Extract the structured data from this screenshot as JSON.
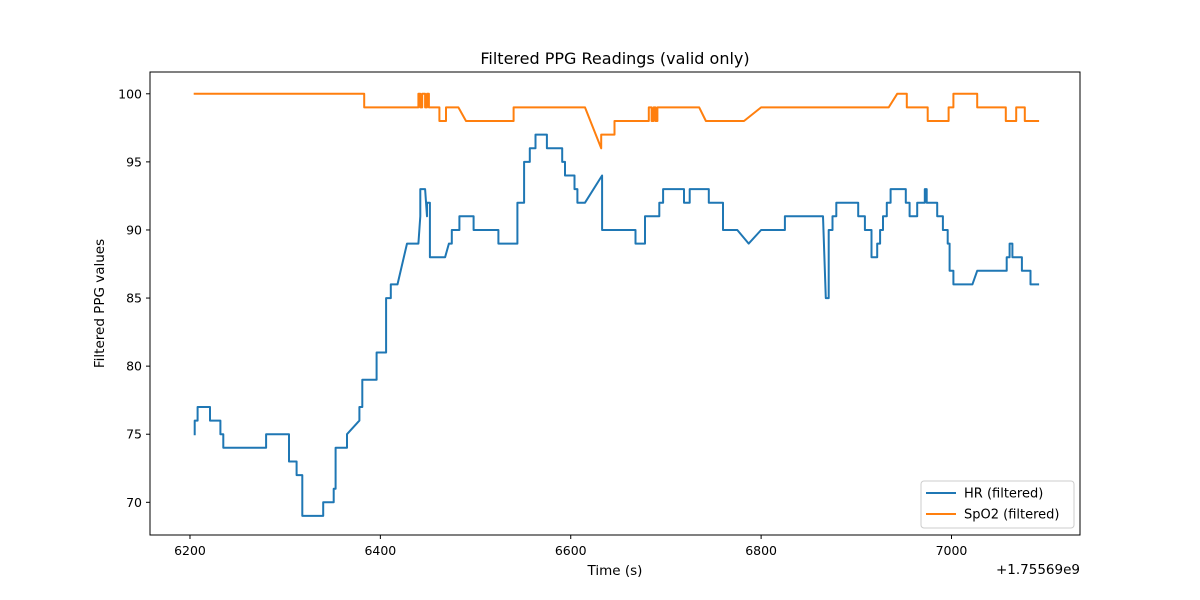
{
  "chart_data": {
    "type": "line",
    "title": "Filtered PPG Readings (valid only)",
    "xlabel": "Time (s)",
    "ylabel": "Filtered PPG values",
    "x_offset_label": "+1.75569e9",
    "xlim": [
      6158,
      7135
    ],
    "ylim": [
      67.6,
      101.6
    ],
    "xticks": [
      6200,
      6400,
      6600,
      6800,
      7000
    ],
    "yticks": [
      70,
      75,
      80,
      85,
      90,
      95,
      100
    ],
    "grid": false,
    "legend_position": "lower right",
    "series": [
      {
        "name": "HR (filtered)",
        "color": "#1f77b4",
        "points": [
          [
            6205,
            75
          ],
          [
            6205,
            76
          ],
          [
            6208,
            76
          ],
          [
            6208,
            77
          ],
          [
            6221,
            77
          ],
          [
            6221,
            76
          ],
          [
            6232,
            76
          ],
          [
            6232,
            75
          ],
          [
            6235,
            75
          ],
          [
            6235,
            74
          ],
          [
            6280,
            74
          ],
          [
            6280,
            75
          ],
          [
            6304,
            75
          ],
          [
            6304,
            73
          ],
          [
            6312,
            73
          ],
          [
            6312,
            72
          ],
          [
            6318,
            72
          ],
          [
            6318,
            69
          ],
          [
            6340,
            69
          ],
          [
            6340,
            70
          ],
          [
            6351,
            70
          ],
          [
            6351,
            71
          ],
          [
            6353,
            71
          ],
          [
            6353,
            74
          ],
          [
            6365,
            74
          ],
          [
            6365,
            75
          ],
          [
            6378,
            76
          ],
          [
            6378,
            77
          ],
          [
            6381,
            77
          ],
          [
            6381,
            79
          ],
          [
            6396,
            79
          ],
          [
            6396,
            81
          ],
          [
            6406,
            81
          ],
          [
            6406,
            85
          ],
          [
            6411,
            85
          ],
          [
            6411,
            86
          ],
          [
            6418,
            86
          ],
          [
            6428,
            89
          ],
          [
            6440,
            89
          ],
          [
            6442,
            91
          ],
          [
            6442,
            93
          ],
          [
            6447,
            93
          ],
          [
            6449,
            91
          ],
          [
            6449,
            92
          ],
          [
            6452,
            92
          ],
          [
            6452,
            88
          ],
          [
            6468,
            88
          ],
          [
            6472,
            89
          ],
          [
            6475,
            89
          ],
          [
            6475,
            90
          ],
          [
            6483,
            90
          ],
          [
            6483,
            91
          ],
          [
            6498,
            91
          ],
          [
            6498,
            90
          ],
          [
            6524,
            90
          ],
          [
            6524,
            89
          ],
          [
            6544,
            89
          ],
          [
            6544,
            92
          ],
          [
            6551,
            92
          ],
          [
            6551,
            95
          ],
          [
            6557,
            95
          ],
          [
            6557,
            96
          ],
          [
            6563,
            96
          ],
          [
            6563,
            97
          ],
          [
            6575,
            97
          ],
          [
            6575,
            96
          ],
          [
            6591,
            96
          ],
          [
            6591,
            95
          ],
          [
            6594,
            95
          ],
          [
            6594,
            94
          ],
          [
            6604,
            94
          ],
          [
            6604,
            93
          ],
          [
            6607,
            93
          ],
          [
            6607,
            92
          ],
          [
            6615,
            92
          ],
          [
            6633,
            94
          ],
          [
            6633,
            90
          ],
          [
            6668,
            90
          ],
          [
            6668,
            89
          ],
          [
            6678,
            89
          ],
          [
            6678,
            91
          ],
          [
            6693,
            91
          ],
          [
            6693,
            92
          ],
          [
            6697,
            92
          ],
          [
            6697,
            93
          ],
          [
            6719,
            93
          ],
          [
            6719,
            92
          ],
          [
            6725,
            92
          ],
          [
            6725,
            93
          ],
          [
            6745,
            93
          ],
          [
            6745,
            92
          ],
          [
            6760,
            92
          ],
          [
            6760,
            90
          ],
          [
            6775,
            90
          ],
          [
            6787,
            89
          ],
          [
            6800,
            90
          ],
          [
            6825,
            90
          ],
          [
            6825,
            91
          ],
          [
            6865,
            91
          ],
          [
            6868,
            85
          ],
          [
            6871,
            85
          ],
          [
            6871,
            90
          ],
          [
            6875,
            90
          ],
          [
            6875,
            91
          ],
          [
            6879,
            91
          ],
          [
            6879,
            92
          ],
          [
            6902,
            92
          ],
          [
            6902,
            91
          ],
          [
            6909,
            91
          ],
          [
            6909,
            90
          ],
          [
            6916,
            90
          ],
          [
            6916,
            88
          ],
          [
            6922,
            88
          ],
          [
            6922,
            89
          ],
          [
            6925,
            89
          ],
          [
            6925,
            90
          ],
          [
            6928,
            90
          ],
          [
            6928,
            91
          ],
          [
            6932,
            91
          ],
          [
            6932,
            92
          ],
          [
            6936,
            92
          ],
          [
            6936,
            93
          ],
          [
            6952,
            93
          ],
          [
            6952,
            92
          ],
          [
            6956,
            92
          ],
          [
            6956,
            91
          ],
          [
            6964,
            91
          ],
          [
            6964,
            92
          ],
          [
            6972,
            92
          ],
          [
            6972,
            93
          ],
          [
            6974,
            93
          ],
          [
            6974,
            92
          ],
          [
            6985,
            92
          ],
          [
            6985,
            91
          ],
          [
            6991,
            91
          ],
          [
            6991,
            90
          ],
          [
            6996,
            90
          ],
          [
            6996,
            89
          ],
          [
            6998,
            89
          ],
          [
            6998,
            87
          ],
          [
            7002,
            87
          ],
          [
            7002,
            86
          ],
          [
            7022,
            86
          ],
          [
            7027,
            87
          ],
          [
            7058,
            87
          ],
          [
            7058,
            88
          ],
          [
            7061,
            88
          ],
          [
            7061,
            89
          ],
          [
            7064,
            89
          ],
          [
            7064,
            88
          ],
          [
            7074,
            88
          ],
          [
            7074,
            87
          ],
          [
            7083,
            87
          ],
          [
            7083,
            86
          ],
          [
            7091,
            86
          ]
        ]
      },
      {
        "name": "SpO2 (filtered)",
        "color": "#ff7f0e",
        "points": [
          [
            6205,
            100
          ],
          [
            6383,
            100
          ],
          [
            6383,
            99
          ],
          [
            6440,
            99
          ],
          [
            6440,
            100
          ],
          [
            6442,
            100
          ],
          [
            6442,
            99
          ],
          [
            6444,
            99
          ],
          [
            6444,
            100
          ],
          [
            6447,
            100
          ],
          [
            6447,
            99
          ],
          [
            6449,
            99
          ],
          [
            6449,
            100
          ],
          [
            6451,
            100
          ],
          [
            6451,
            99
          ],
          [
            6462,
            99
          ],
          [
            6462,
            98
          ],
          [
            6469,
            98
          ],
          [
            6469,
            99
          ],
          [
            6482,
            99
          ],
          [
            6490,
            98
          ],
          [
            6540,
            98
          ],
          [
            6540,
            99
          ],
          [
            6615,
            99
          ],
          [
            6632,
            96
          ],
          [
            6632,
            97
          ],
          [
            6646,
            97
          ],
          [
            6646,
            98
          ],
          [
            6682,
            98
          ],
          [
            6682,
            99
          ],
          [
            6685,
            99
          ],
          [
            6685,
            98
          ],
          [
            6687,
            98
          ],
          [
            6687,
            99
          ],
          [
            6689,
            99
          ],
          [
            6689,
            98
          ],
          [
            6691,
            98
          ],
          [
            6691,
            99
          ],
          [
            6735,
            99
          ],
          [
            6742,
            98
          ],
          [
            6782,
            98
          ],
          [
            6800,
            99
          ],
          [
            6934,
            99
          ],
          [
            6943,
            100
          ],
          [
            6953,
            100
          ],
          [
            6953,
            99
          ],
          [
            6975,
            99
          ],
          [
            6975,
            98
          ],
          [
            6997,
            98
          ],
          [
            6997,
            99
          ],
          [
            7002,
            99
          ],
          [
            7002,
            100
          ],
          [
            7027,
            100
          ],
          [
            7027,
            99
          ],
          [
            7057,
            99
          ],
          [
            7057,
            98
          ],
          [
            7068,
            98
          ],
          [
            7068,
            99
          ],
          [
            7077,
            99
          ],
          [
            7077,
            98
          ],
          [
            7091,
            98
          ]
        ]
      }
    ]
  }
}
